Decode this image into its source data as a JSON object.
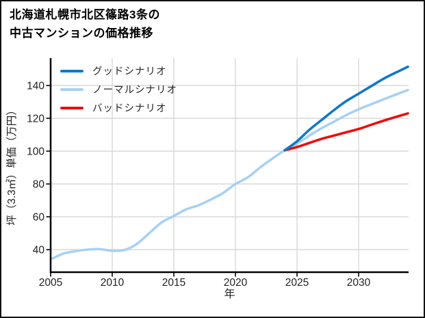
{
  "title": {
    "line1": "北海道札幌市北区篠路3条の",
    "line2": "中古マンションの価格推移"
  },
  "legend": {
    "items": [
      {
        "key": "good",
        "label": "グッドシナリオ",
        "color": "#1078c8"
      },
      {
        "key": "normal",
        "label": "ノーマルシナリオ",
        "color": "#a7d1f5"
      },
      {
        "key": "bad",
        "label": "バッドシナリオ",
        "color": "#f30b0b"
      }
    ]
  },
  "chart_data": {
    "type": "line",
    "title": "北海道札幌市北区篠路3条の中古マンションの価格推移",
    "xlabel": "年",
    "ylabel": "坪（3.3㎡）単価（万円）",
    "xlim": [
      2005,
      2034.1
    ],
    "ylim": [
      26,
      157
    ],
    "xticks": [
      2005,
      2010,
      2015,
      2020,
      2025,
      2030
    ],
    "yticks": [
      40,
      60,
      80,
      100,
      120,
      140
    ],
    "grid": true,
    "legend_position": "upper-left",
    "colors": {
      "grid": "#d9d9d9",
      "spine": "#000000",
      "tick_label": "#1f1f1f"
    },
    "series": [
      {
        "key": "good",
        "name": "グッドシナリオ",
        "color": "#1078c8",
        "z": 3,
        "x": [
          2024,
          2025,
          2026,
          2027,
          2028,
          2029,
          2030,
          2031,
          2032,
          2033,
          2034
        ],
        "values": [
          100.5,
          106,
          113,
          119,
          125,
          130.5,
          135,
          139.5,
          144,
          147.8,
          151.4
        ]
      },
      {
        "key": "normal",
        "name": "ノーマルシナリオ",
        "color": "#a7d1f5",
        "z": 1,
        "x": [
          2005,
          2006,
          2007,
          2008,
          2009,
          2010,
          2011,
          2012,
          2013,
          2014,
          2015,
          2016,
          2017,
          2018,
          2019,
          2020,
          2021,
          2022,
          2023,
          2024,
          2025,
          2026,
          2027,
          2028,
          2029,
          2030,
          2031,
          2032,
          2033,
          2034
        ],
        "values": [
          34,
          37.5,
          39,
          40,
          40.3,
          39.3,
          39.8,
          43.5,
          50,
          56.5,
          60.5,
          64.5,
          67,
          70.5,
          74.5,
          80,
          84,
          90,
          95.5,
          100.5,
          104.5,
          109.5,
          114,
          118,
          122,
          125.5,
          128.5,
          131.5,
          134.4,
          137.2
        ]
      },
      {
        "key": "bad",
        "name": "バッドシナリオ",
        "color": "#f30b0b",
        "z": 2,
        "x": [
          2024,
          2025,
          2026,
          2027,
          2028,
          2029,
          2030,
          2031,
          2032,
          2033,
          2034
        ],
        "values": [
          100.5,
          102.5,
          105,
          107.5,
          109.5,
          111.5,
          113.5,
          116,
          118.5,
          120.8,
          123
        ]
      }
    ]
  }
}
